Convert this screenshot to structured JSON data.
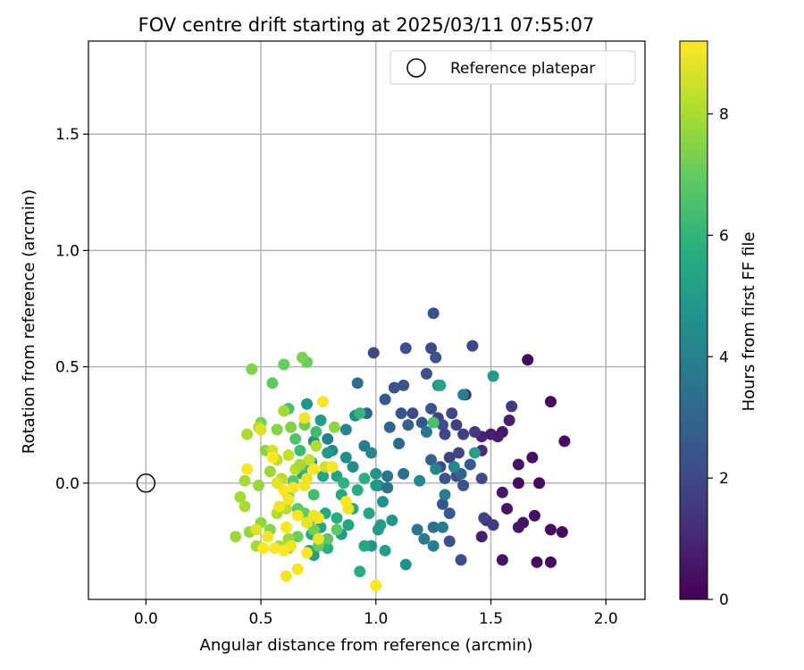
{
  "chart_data": {
    "type": "scatter",
    "title": "FOV centre drift starting at 2025/03/11 07:55:07",
    "xlabel": "Angular distance from reference (arcmin)",
    "ylabel": "Rotation from reference (arcmin)",
    "xlim": [
      -0.25,
      2.17
    ],
    "ylim": [
      -0.5,
      1.9
    ],
    "xticks": [
      0.0,
      0.5,
      1.0,
      1.5,
      2.0
    ],
    "xtick_labels": [
      "0.0",
      "0.5",
      "1.0",
      "1.5",
      "2.0"
    ],
    "yticks": [
      0.0,
      0.5,
      1.0,
      1.5
    ],
    "ytick_labels": [
      "0.0",
      "0.5",
      "1.0",
      "1.5"
    ],
    "grid": true,
    "legend": {
      "position": "top-right",
      "entries": [
        {
          "label": "Reference platepar",
          "marker": "open-circle"
        }
      ]
    },
    "reference_point": {
      "x": 0.0,
      "y": 0.0
    },
    "colorbar": {
      "label": "Hours from first FF file",
      "min": 0,
      "max": 9.2,
      "ticks": [
        0,
        2,
        4,
        6,
        8
      ],
      "tick_labels": [
        "0",
        "2",
        "4",
        "6",
        "8"
      ],
      "colormap": "viridis"
    },
    "point_fields": [
      "x",
      "y",
      "hours"
    ],
    "points": [
      [
        1.66,
        0.53,
        0.2
      ],
      [
        1.82,
        0.18,
        0.3
      ],
      [
        1.76,
        0.35,
        0.3
      ],
      [
        1.55,
        0.22,
        0.6
      ],
      [
        1.58,
        0.27,
        0.8
      ],
      [
        1.62,
        0.08,
        0.5
      ],
      [
        1.68,
        0.11,
        0.4
      ],
      [
        1.71,
        0.0,
        0.3
      ],
      [
        1.62,
        0.0,
        0.3
      ],
      [
        1.55,
        -0.04,
        0.6
      ],
      [
        1.57,
        -0.11,
        0.5
      ],
      [
        1.64,
        -0.17,
        0.5
      ],
      [
        1.69,
        -0.14,
        0.4
      ],
      [
        1.76,
        -0.2,
        0.3
      ],
      [
        1.81,
        -0.21,
        0.3
      ],
      [
        1.7,
        -0.34,
        0.3
      ],
      [
        1.76,
        -0.34,
        0.3
      ],
      [
        1.55,
        -0.33,
        0.5
      ],
      [
        1.62,
        -0.19,
        0.6
      ],
      [
        1.46,
        -0.23,
        0.8
      ],
      [
        1.48,
        -0.16,
        1.0
      ],
      [
        1.46,
        0.14,
        1.1
      ],
      [
        1.46,
        0.2,
        0.9
      ],
      [
        1.5,
        0.21,
        0.8
      ],
      [
        1.39,
        0.38,
        0.9
      ],
      [
        1.53,
        0.2,
        0.7
      ],
      [
        1.59,
        0.33,
        1.6
      ],
      [
        1.47,
        -0.15,
        1.8
      ],
      [
        1.51,
        -0.18,
        1.6
      ],
      [
        1.25,
        0.73,
        2.2
      ],
      [
        1.42,
        0.59,
        2.0
      ],
      [
        1.24,
        0.58,
        2.1
      ],
      [
        1.13,
        0.58,
        2.2
      ],
      [
        0.99,
        0.56,
        2.0
      ],
      [
        1.26,
        0.54,
        2.3
      ],
      [
        1.22,
        0.47,
        2.2
      ],
      [
        1.12,
        0.42,
        2.4
      ],
      [
        1.08,
        0.41,
        2.3
      ],
      [
        1.04,
        0.36,
        2.5
      ],
      [
        1.16,
        0.3,
        2.1
      ],
      [
        1.11,
        0.3,
        2.3
      ],
      [
        1.27,
        0.28,
        1.9
      ],
      [
        1.33,
        0.3,
        2.0
      ],
      [
        1.29,
        0.25,
        2.2
      ],
      [
        1.35,
        0.25,
        1.8
      ],
      [
        1.38,
        0.21,
        1.7
      ],
      [
        1.43,
        0.22,
        1.6
      ],
      [
        1.3,
        0.21,
        1.9
      ],
      [
        1.32,
        0.11,
        1.8
      ],
      [
        1.36,
        0.13,
        1.9
      ],
      [
        1.28,
        0.07,
        2.1
      ],
      [
        1.35,
        0.03,
        2.2
      ],
      [
        1.3,
        0.02,
        2.4
      ],
      [
        1.38,
        -0.01,
        2.3
      ],
      [
        1.41,
        0.08,
        2.5
      ],
      [
        1.46,
        0.02,
        2.1
      ],
      [
        1.32,
        -0.13,
        2.6
      ],
      [
        1.37,
        -0.33,
        2.2
      ],
      [
        1.32,
        -0.25,
        2.3
      ],
      [
        1.29,
        -0.09,
        2.4
      ],
      [
        1.37,
        0.04,
        3.0
      ],
      [
        1.24,
        0.1,
        2.9
      ],
      [
        1.24,
        0.32,
        2.4
      ],
      [
        1.2,
        0.26,
        2.6
      ],
      [
        1.14,
        0.25,
        2.8
      ],
      [
        1.06,
        0.24,
        3.0
      ],
      [
        1.1,
        0.17,
        3.2
      ],
      [
        0.92,
        0.43,
        3.2
      ],
      [
        1.12,
        0.04,
        3.4
      ],
      [
        1.05,
        0.03,
        3.6
      ],
      [
        1.01,
        -0.01,
        3.8
      ],
      [
        1.05,
        -0.02,
        3.5
      ],
      [
        1.18,
        -0.2,
        3.5
      ],
      [
        1.21,
        -0.24,
        3.7
      ],
      [
        1.25,
        -0.19,
        3.4
      ],
      [
        1.29,
        -0.19,
        3.8
      ],
      [
        1.25,
        -0.27,
        3.9
      ],
      [
        1.13,
        -0.35,
        4.6
      ],
      [
        1.22,
        0.22,
        3.6
      ],
      [
        1.27,
        0.42,
        4.4
      ],
      [
        1.38,
        0.38,
        4.0
      ],
      [
        1.3,
        -0.05,
        3.9
      ],
      [
        1.34,
        0.07,
        4.2
      ],
      [
        1.26,
        0.06,
        4.1
      ],
      [
        1.19,
        0.01,
        4.3
      ],
      [
        0.96,
        0.3,
        3.0
      ],
      [
        0.91,
        0.29,
        4.5
      ],
      [
        0.95,
        0.16,
        3.9
      ],
      [
        0.98,
        0.13,
        4.2
      ],
      [
        0.87,
        0.23,
        4.1
      ],
      [
        0.79,
        0.19,
        4.0
      ],
      [
        0.81,
        0.14,
        4.3
      ],
      [
        0.87,
        0.11,
        4.5
      ],
      [
        0.9,
        0.07,
        4.4
      ],
      [
        1.0,
        0.04,
        4.7
      ],
      [
        1.0,
        -0.01,
        4.9
      ],
      [
        1.03,
        -0.08,
        4.6
      ],
      [
        1.07,
        -0.16,
        4.8
      ],
      [
        1.02,
        -0.18,
        5.2
      ],
      [
        1.01,
        -0.2,
        5.0
      ],
      [
        0.98,
        -0.27,
        4.8
      ],
      [
        1.04,
        -0.29,
        5.1
      ],
      [
        0.95,
        -0.27,
        5.5
      ],
      [
        0.93,
        -0.38,
        5.7
      ],
      [
        0.97,
        -0.13,
        5.3
      ],
      [
        0.88,
        -0.18,
        5.4
      ],
      [
        0.85,
        -0.22,
        5.0
      ],
      [
        0.9,
        -0.11,
        5.6
      ],
      [
        0.83,
        -0.15,
        5.7
      ],
      [
        0.78,
        -0.13,
        5.5
      ],
      [
        0.76,
        -0.19,
        5.3
      ],
      [
        0.72,
        -0.22,
        5.6
      ],
      [
        0.79,
        -0.28,
        5.8
      ],
      [
        0.73,
        -0.31,
        5.2
      ],
      [
        0.71,
        -0.29,
        5.4
      ],
      [
        0.7,
        0.34,
        4.8
      ],
      [
        0.76,
        0.27,
        5.0
      ],
      [
        0.73,
        0.18,
        4.6
      ],
      [
        0.79,
        0.13,
        4.9
      ],
      [
        0.72,
        0.09,
        5.2
      ],
      [
        0.77,
        0.03,
        5.4
      ],
      [
        0.68,
        0.04,
        5.6
      ],
      [
        0.83,
        0.03,
        5.3
      ],
      [
        0.85,
        -0.05,
        5.5
      ],
      [
        0.92,
        -0.03,
        5.7
      ],
      [
        0.95,
        0.02,
        5.8
      ],
      [
        0.86,
        0.0,
        5.9
      ],
      [
        1.25,
        0.26,
        6.5
      ],
      [
        1.51,
        0.46,
        5.0
      ],
      [
        1.43,
        0.13,
        5.1
      ],
      [
        1.28,
        0.42,
        5.3
      ],
      [
        0.93,
        0.3,
        6.0
      ],
      [
        0.67,
        0.14,
        6.2
      ],
      [
        0.62,
        0.32,
        6.4
      ],
      [
        0.74,
        0.22,
        6.3
      ],
      [
        0.65,
        0.19,
        6.6
      ],
      [
        0.68,
        0.07,
        6.5
      ],
      [
        0.64,
        0.01,
        6.8
      ],
      [
        0.62,
        -0.06,
        6.7
      ],
      [
        0.66,
        -0.11,
        6.9
      ],
      [
        0.71,
        -0.16,
        6.6
      ],
      [
        0.73,
        -0.05,
        6.4
      ],
      [
        0.69,
        -0.13,
        7.0
      ],
      [
        0.66,
        -0.23,
        7.1
      ],
      [
        0.62,
        -0.28,
        7.3
      ],
      [
        0.73,
        -0.2,
        7.2
      ],
      [
        0.75,
        -0.27,
        7.0
      ],
      [
        0.79,
        -0.24,
        6.8
      ],
      [
        0.83,
        -0.2,
        6.9
      ],
      [
        0.55,
        0.43,
        6.9
      ],
      [
        0.6,
        0.51,
        7.0
      ],
      [
        0.7,
        0.52,
        7.1
      ],
      [
        0.68,
        0.54,
        7.3
      ],
      [
        0.46,
        0.49,
        7.4
      ],
      [
        0.5,
        0.26,
        7.3
      ],
      [
        0.57,
        0.23,
        7.5
      ],
      [
        0.63,
        0.24,
        7.4
      ],
      [
        0.69,
        0.25,
        7.2
      ],
      [
        0.82,
        0.24,
        7.6
      ],
      [
        0.52,
        0.14,
        7.6
      ],
      [
        0.54,
        0.05,
        7.8
      ],
      [
        0.49,
        -0.01,
        7.7
      ],
      [
        0.43,
        0.01,
        7.9
      ],
      [
        0.41,
        -0.06,
        7.9
      ],
      [
        0.43,
        -0.1,
        8.0
      ],
      [
        0.39,
        -0.23,
        7.8
      ],
      [
        0.45,
        -0.21,
        7.7
      ],
      [
        0.5,
        -0.17,
        7.6
      ],
      [
        0.54,
        -0.2,
        7.5
      ],
      [
        0.48,
        -0.27,
        7.9
      ],
      [
        0.58,
        -0.27,
        8.0
      ],
      [
        0.62,
        -0.24,
        7.8
      ],
      [
        0.57,
        -0.13,
        8.1
      ],
      [
        0.61,
        -0.11,
        8.2
      ],
      [
        0.59,
        0.02,
        8.3
      ],
      [
        0.65,
        0.06,
        8.2
      ],
      [
        0.71,
        0.1,
        8.4
      ],
      [
        0.78,
        0.07,
        8.5
      ],
      [
        0.74,
        0.16,
        8.1
      ],
      [
        0.67,
        0.08,
        8.0
      ],
      [
        0.62,
        0.12,
        8.4
      ],
      [
        0.57,
        0.1,
        8.3
      ],
      [
        0.6,
        0.31,
        7.9
      ],
      [
        0.44,
        0.21,
        8.0
      ],
      [
        0.49,
        0.24,
        8.2
      ],
      [
        0.55,
        0.14,
        8.6
      ],
      [
        0.6,
        -0.03,
        9.2
      ],
      [
        0.62,
        -0.07,
        9.1
      ],
      [
        0.58,
        -0.1,
        9.0
      ],
      [
        0.64,
        -0.02,
        9.1
      ],
      [
        0.69,
        -0.01,
        9.0
      ],
      [
        0.7,
        0.02,
        8.9
      ],
      [
        0.73,
        0.06,
        9.1
      ],
      [
        0.69,
        0.28,
        9.0
      ],
      [
        0.77,
        0.35,
        9.2
      ],
      [
        0.81,
        0.07,
        9.1
      ],
      [
        0.87,
        -0.08,
        9.2
      ],
      [
        0.88,
        -0.11,
        9.0
      ],
      [
        0.75,
        -0.15,
        9.1
      ],
      [
        0.73,
        -0.14,
        9.0
      ],
      [
        0.7,
        -0.17,
        8.9
      ],
      [
        0.66,
        -0.14,
        9.2
      ],
      [
        0.61,
        -0.19,
        9.1
      ],
      [
        0.63,
        -0.27,
        9.0
      ],
      [
        0.6,
        -0.29,
        9.2
      ],
      [
        0.56,
        -0.28,
        9.1
      ],
      [
        0.51,
        -0.28,
        9.2
      ],
      [
        0.53,
        -0.23,
        9.0
      ],
      [
        0.48,
        -0.2,
        8.8
      ],
      [
        0.55,
        0.11,
        9.2
      ],
      [
        0.44,
        0.06,
        9.1
      ],
      [
        0.61,
        -0.4,
        9.0
      ],
      [
        0.66,
        -0.37,
        9.1
      ],
      [
        0.7,
        -0.3,
        9.2
      ],
      [
        0.75,
        -0.24,
        8.9
      ],
      [
        1.0,
        -0.44,
        9.2
      ],
      [
        0.5,
        0.23,
        8.7
      ],
      [
        0.57,
        0.0,
        8.8
      ]
    ]
  }
}
